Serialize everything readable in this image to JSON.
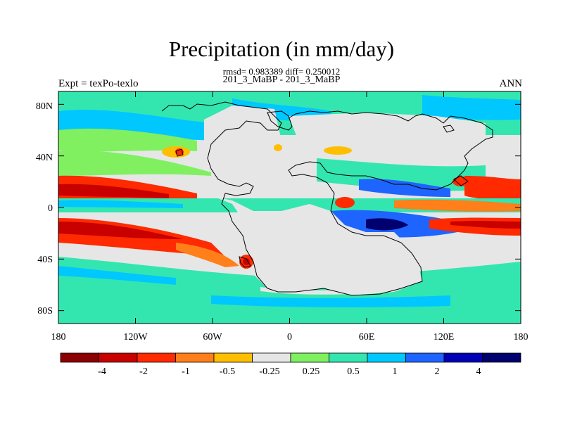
{
  "title": "Precipitation (in mm/day)",
  "subtitle": "rmsd= 0.983389 diff= 0.250012",
  "case_label": "201_3_MaBP - 201_3_MaBP",
  "left_string": "Expt = texPo-texlo",
  "right_string": "ANN",
  "x_axis": {
    "range": [
      -180,
      180
    ],
    "ticks": [
      -180,
      -120,
      -60,
      0,
      60,
      120,
      180
    ],
    "tick_labels": [
      "180",
      "120W",
      "60W",
      "0",
      "60E",
      "120E",
      "180"
    ]
  },
  "y_axis": {
    "range": [
      -90,
      90
    ],
    "ticks": [
      80,
      40,
      0,
      -40,
      -80
    ],
    "tick_labels": [
      "80N",
      "40N",
      "0",
      "40S",
      "80S"
    ]
  },
  "colorbar": {
    "colors": [
      "#8b0000",
      "#c80000",
      "#ff2a00",
      "#ff7f1a",
      "#ffbf00",
      "#e6e6e6",
      "#80f060",
      "#33e6b0",
      "#00c8ff",
      "#1e64ff",
      "#0000b4",
      "#00006e"
    ],
    "labels": [
      "-4",
      "-2",
      "-1",
      "-0.5",
      "-0.25",
      "0.25",
      "0.5",
      "1",
      "2",
      "4"
    ]
  },
  "map_fill_colors": {
    "neutral": "#e6e6e6",
    "wet_light": "#80f060",
    "wet_mid": "#33e6b0",
    "wet_high": "#00c8ff",
    "wet_strong": "#1e64ff",
    "wet_max": "#00006e",
    "dry_light": "#ffbf00",
    "dry_mid": "#ff7f1a",
    "dry_high": "#ff2a00",
    "dry_strong": "#c80000",
    "dry_max": "#8b0000"
  }
}
